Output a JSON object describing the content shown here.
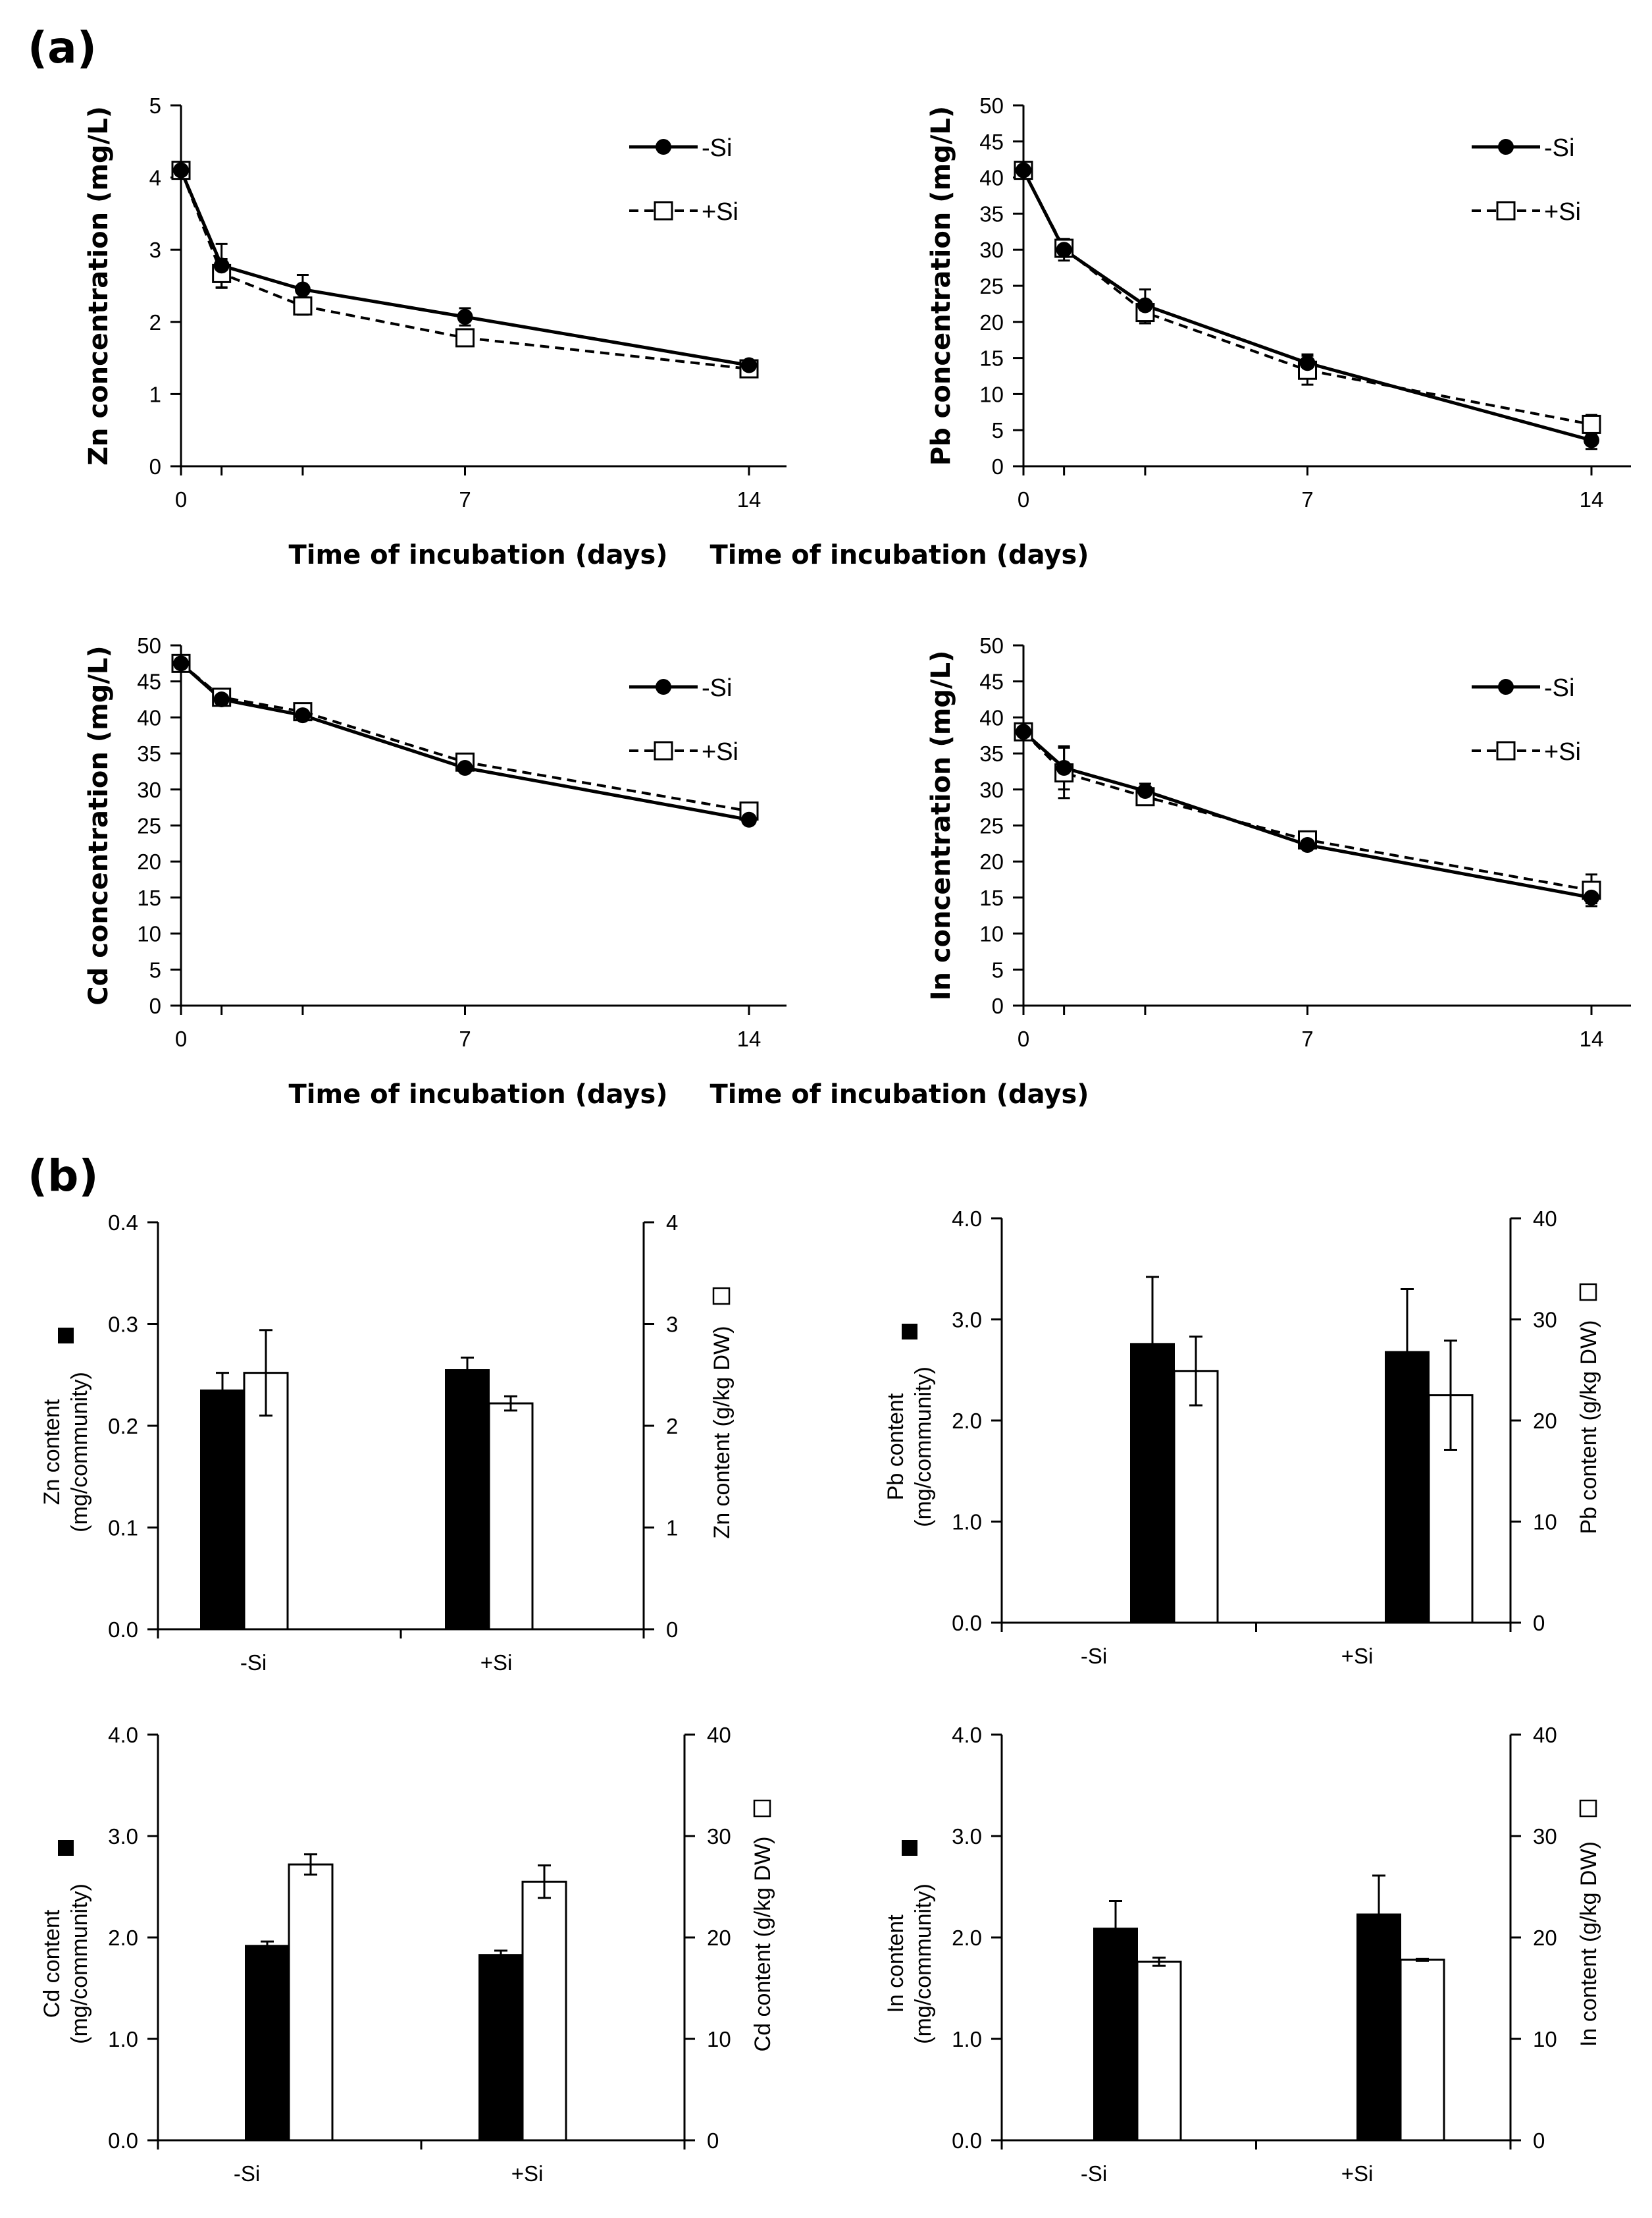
{
  "panel_labels": {
    "a": "(a)",
    "b": "(b)"
  },
  "chart_data": [
    {
      "id": "zn-line",
      "type": "line",
      "ylabel": "Zn concentration (mg/L)",
      "xlabel": "Time of incubation (days)",
      "x": [
        0,
        1,
        3,
        7,
        14
      ],
      "xticks": [
        "0",
        "7",
        "14"
      ],
      "ylim": [
        0,
        5
      ],
      "yticks": [
        "0",
        "1",
        "2",
        "3",
        "4",
        "5"
      ],
      "series": [
        {
          "name": "-Si",
          "marker": "filled-circle",
          "line": "solid",
          "values": [
            4.1,
            2.78,
            2.45,
            2.07,
            1.4
          ],
          "errors": [
            0.08,
            0.3,
            0.2,
            0.12,
            0.04
          ]
        },
        {
          "name": "+Si",
          "marker": "open-square",
          "line": "dashed",
          "values": [
            4.1,
            2.67,
            2.22,
            1.78,
            1.35
          ],
          "errors": [
            0.08,
            0.2,
            0.12,
            0.08,
            0.04
          ]
        }
      ]
    },
    {
      "id": "pb-line",
      "type": "line",
      "ylabel": "Pb concentration (mg/L)",
      "xlabel": "Time of incubation (days)",
      "x": [
        0,
        1,
        3,
        7,
        14
      ],
      "xticks": [
        "0",
        "7",
        "14"
      ],
      "ylim": [
        0,
        50
      ],
      "yticks": [
        "0",
        "5",
        "10",
        "15",
        "20",
        "25",
        "30",
        "35",
        "40",
        "45",
        "50"
      ],
      "series": [
        {
          "name": "-Si",
          "marker": "filled-circle",
          "line": "solid",
          "values": [
            41,
            30,
            22.3,
            14.3,
            3.6
          ],
          "errors": [
            0.8,
            1.5,
            2.2,
            1.2,
            1.2
          ]
        },
        {
          "name": "+Si",
          "marker": "open-square",
          "line": "dashed",
          "values": [
            41,
            30.2,
            21.3,
            13.3,
            5.8
          ],
          "errors": [
            0.8,
            1.2,
            1.5,
            2.0,
            1.3
          ]
        }
      ]
    },
    {
      "id": "cd-line",
      "type": "line",
      "ylabel": "Cd concentration (mg/L)",
      "xlabel": "Time of incubation (days)",
      "x": [
        0,
        1,
        3,
        7,
        14
      ],
      "xticks": [
        "0",
        "7",
        "14"
      ],
      "ylim": [
        0,
        50
      ],
      "yticks": [
        "0",
        "5",
        "10",
        "15",
        "20",
        "25",
        "30",
        "35",
        "40",
        "45",
        "50"
      ],
      "series": [
        {
          "name": "-Si",
          "marker": "filled-circle",
          "line": "solid",
          "values": [
            47.5,
            42.5,
            40.3,
            33,
            25.8
          ],
          "errors": [
            0.5,
            0.5,
            0.6,
            0.5,
            0.6
          ]
        },
        {
          "name": "+Si",
          "marker": "open-square",
          "line": "dashed",
          "values": [
            47.5,
            42.8,
            40.8,
            33.8,
            27
          ],
          "errors": [
            0.5,
            0.5,
            0.6,
            0.5,
            0.6
          ]
        }
      ]
    },
    {
      "id": "in-line",
      "type": "line",
      "ylabel": "In concentration (mg/L)",
      "xlabel": "Time of incubation (days)",
      "x": [
        0,
        1,
        3,
        7,
        14
      ],
      "xticks": [
        "0",
        "7",
        "14"
      ],
      "ylim": [
        0,
        50
      ],
      "yticks": [
        "0",
        "5",
        "10",
        "15",
        "20",
        "25",
        "30",
        "35",
        "40",
        "45",
        "50"
      ],
      "series": [
        {
          "name": "-Si",
          "marker": "filled-circle",
          "line": "solid",
          "values": [
            38,
            33,
            29.8,
            22.3,
            15
          ],
          "errors": [
            0.8,
            3.0,
            1.0,
            0.6,
            0.8
          ]
        },
        {
          "name": "+Si",
          "marker": "open-square",
          "line": "dashed",
          "values": [
            38,
            32.3,
            29,
            23,
            16
          ],
          "errors": [
            0.8,
            3.5,
            0.8,
            0.6,
            2.2
          ]
        }
      ]
    },
    {
      "id": "zn-bar",
      "type": "bar",
      "categories": [
        "-Si",
        "+Si"
      ],
      "ylabel_left": "Zn content\n(mg/community)",
      "ylabel_right": "Zn content (g/kg DW)",
      "ylim_left": [
        0,
        0.4
      ],
      "yticks_left": [
        "0.0",
        "0.1",
        "0.2",
        "0.3",
        "0.4"
      ],
      "ylim_right": [
        0,
        4
      ],
      "yticks_right": [
        "0",
        "1",
        "2",
        "3",
        "4"
      ],
      "series": [
        {
          "name": "mg/community",
          "axis": "left",
          "fill": "#000000",
          "values": [
            0.235,
            0.255
          ],
          "errors": [
            0.017,
            0.012
          ]
        },
        {
          "name": "g/kg DW",
          "axis": "right",
          "fill": "#ffffff",
          "values": [
            2.52,
            2.22
          ],
          "errors": [
            0.42,
            0.07
          ]
        }
      ]
    },
    {
      "id": "pb-bar",
      "type": "bar",
      "categories": [
        "-Si",
        "+Si"
      ],
      "ylabel_left": "Pb content\n(mg/community)",
      "ylabel_right": "Pb content (g/kg DW)",
      "ylim_left": [
        0,
        4
      ],
      "yticks_left": [
        "0.0",
        "1.0",
        "2.0",
        "3.0",
        "4.0"
      ],
      "ylim_right": [
        0,
        40
      ],
      "yticks_right": [
        "0",
        "10",
        "20",
        "30",
        "40"
      ],
      "series": [
        {
          "name": "mg/community",
          "axis": "left",
          "fill": "#000000",
          "values": [
            2.76,
            2.68
          ],
          "errors": [
            0.66,
            0.62
          ]
        },
        {
          "name": "g/kg DW",
          "axis": "right",
          "fill": "#ffffff",
          "values": [
            24.9,
            22.5
          ],
          "errors": [
            3.4,
            5.4
          ]
        }
      ]
    },
    {
      "id": "cd-bar",
      "type": "bar",
      "categories": [
        "-Si",
        "+Si"
      ],
      "ylabel_left": "Cd content\n(mg/community)",
      "ylabel_right": "Cd content (g/kg DW)",
      "ylim_left": [
        0,
        4
      ],
      "yticks_left": [
        "0.0",
        "1.0",
        "2.0",
        "3.0",
        "4.0"
      ],
      "ylim_right": [
        0,
        40
      ],
      "yticks_right": [
        "0",
        "10",
        "20",
        "30",
        "40"
      ],
      "series": [
        {
          "name": "mg/community",
          "axis": "left",
          "fill": "#000000",
          "values": [
            1.92,
            1.83
          ],
          "errors": [
            0.04,
            0.04
          ]
        },
        {
          "name": "g/kg DW",
          "axis": "right",
          "fill": "#ffffff",
          "values": [
            27.2,
            25.5
          ],
          "errors": [
            1.0,
            1.6
          ]
        }
      ]
    },
    {
      "id": "in-bar",
      "type": "bar",
      "categories": [
        "-Si",
        "+Si"
      ],
      "ylabel_left": "In content\n(mg/community)",
      "ylabel_right": "In content (g/kg DW)",
      "ylim_left": [
        0,
        4
      ],
      "yticks_left": [
        "0.0",
        "1.0",
        "2.0",
        "3.0",
        "4.0"
      ],
      "ylim_right": [
        0,
        40
      ],
      "yticks_right": [
        "0",
        "10",
        "20",
        "30",
        "40"
      ],
      "series": [
        {
          "name": "mg/community",
          "axis": "left",
          "fill": "#000000",
          "values": [
            2.09,
            2.23
          ],
          "errors": [
            0.27,
            0.38
          ]
        },
        {
          "name": "g/kg DW",
          "axis": "right",
          "fill": "#ffffff",
          "values": [
            17.6,
            17.8
          ],
          "errors": [
            0.4,
            0.1
          ]
        }
      ]
    }
  ]
}
